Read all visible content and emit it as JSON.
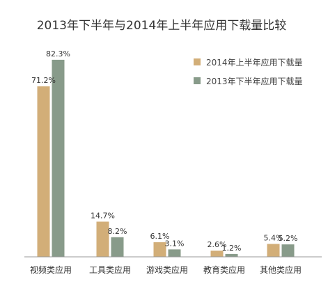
{
  "chart_data": {
    "type": "bar",
    "title": "2013年下半年与2014年上半年应用下载量比较",
    "xlabel": "",
    "ylabel": "",
    "categories": [
      "视频类应用",
      "工具类应用",
      "游戏类应用",
      "教育类应用",
      "其他类应用"
    ],
    "series": [
      {
        "name": "2014年上半年应用下载量",
        "color": "#D2AE78",
        "values": [
          71.2,
          14.7,
          6.1,
          2.6,
          5.4
        ],
        "labels": [
          "71.2%",
          "14.7%",
          "6.1%",
          "2.6%",
          "5.4%"
        ]
      },
      {
        "name": "2013年下半年应用下载量",
        "color": "#889B8A",
        "values": [
          82.3,
          8.2,
          3.1,
          1.2,
          5.2
        ],
        "labels": [
          "82.3%",
          "8.2%",
          "3.1%",
          "1.2%",
          "5.2%"
        ]
      }
    ],
    "ylim": [
      0,
      100
    ],
    "grid": false,
    "legend_position": "top-right",
    "axis_color": "#999999"
  }
}
